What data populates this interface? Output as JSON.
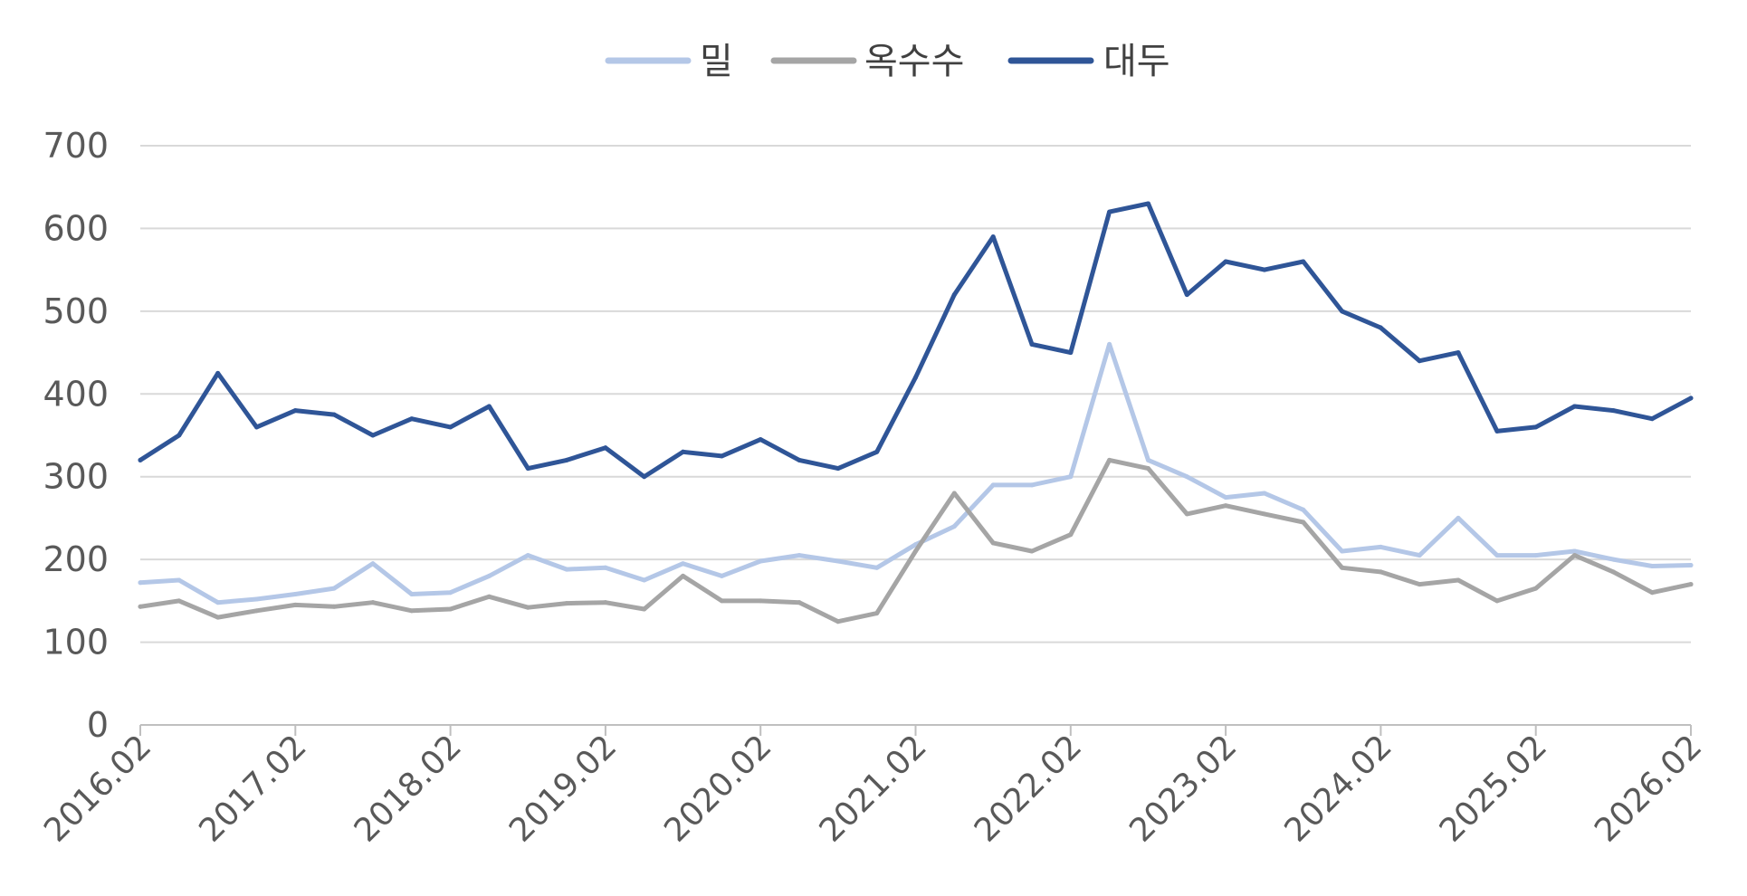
{
  "chart_data": {
    "type": "line",
    "title": "",
    "xlabel": "",
    "ylabel": "",
    "ylim": [
      0,
      700
    ],
    "yticks": [
      0,
      100,
      200,
      300,
      400,
      500,
      600,
      700
    ],
    "grid": true,
    "legend_position": "top-center",
    "categories": [
      "2016.02",
      "2016.05",
      "2016.08",
      "2016.11",
      "2017.02",
      "2017.05",
      "2017.08",
      "2017.11",
      "2018.02",
      "2018.05",
      "2018.08",
      "2018.11",
      "2019.02",
      "2019.05",
      "2019.08",
      "2019.11",
      "2020.02",
      "2020.05",
      "2020.08",
      "2020.11",
      "2021.02",
      "2021.05",
      "2021.08",
      "2021.11",
      "2022.02",
      "2022.05",
      "2022.08",
      "2022.11",
      "2023.02",
      "2023.05",
      "2023.08",
      "2023.11",
      "2024.02",
      "2024.05",
      "2024.08",
      "2024.11",
      "2025.02",
      "2025.05",
      "2025.08",
      "2025.11",
      "2026.02"
    ],
    "x_tick_labels": [
      "2016.02",
      "2017.02",
      "2018.02",
      "2019.02",
      "2020.02",
      "2021.02",
      "2022.02",
      "2023.02",
      "2024.02",
      "2025.02",
      "2026.02"
    ],
    "series": [
      {
        "name": "밀",
        "color": "#b4c7e7",
        "values": [
          172,
          175,
          148,
          152,
          158,
          165,
          195,
          158,
          160,
          180,
          205,
          188,
          190,
          175,
          195,
          180,
          198,
          205,
          198,
          190,
          218,
          240,
          290,
          290,
          300,
          460,
          320,
          300,
          275,
          280,
          260,
          210,
          215,
          205,
          250,
          205,
          205,
          210,
          200,
          192,
          193
        ]
      },
      {
        "name": "옥수수",
        "color": "#a5a5a5",
        "values": [
          143,
          150,
          130,
          138,
          145,
          143,
          148,
          138,
          140,
          155,
          142,
          147,
          148,
          140,
          180,
          150,
          150,
          148,
          125,
          135,
          210,
          280,
          220,
          210,
          230,
          320,
          310,
          255,
          265,
          255,
          245,
          190,
          185,
          170,
          175,
          150,
          165,
          205,
          185,
          160,
          170
        ]
      },
      {
        "name": "대두",
        "color": "#2f5597",
        "values": [
          320,
          350,
          425,
          360,
          380,
          375,
          350,
          370,
          360,
          385,
          310,
          320,
          335,
          300,
          330,
          325,
          345,
          320,
          310,
          330,
          420,
          520,
          590,
          460,
          450,
          620,
          630,
          520,
          560,
          550,
          560,
          500,
          480,
          440,
          450,
          355,
          360,
          385,
          380,
          370,
          395
        ]
      }
    ]
  }
}
